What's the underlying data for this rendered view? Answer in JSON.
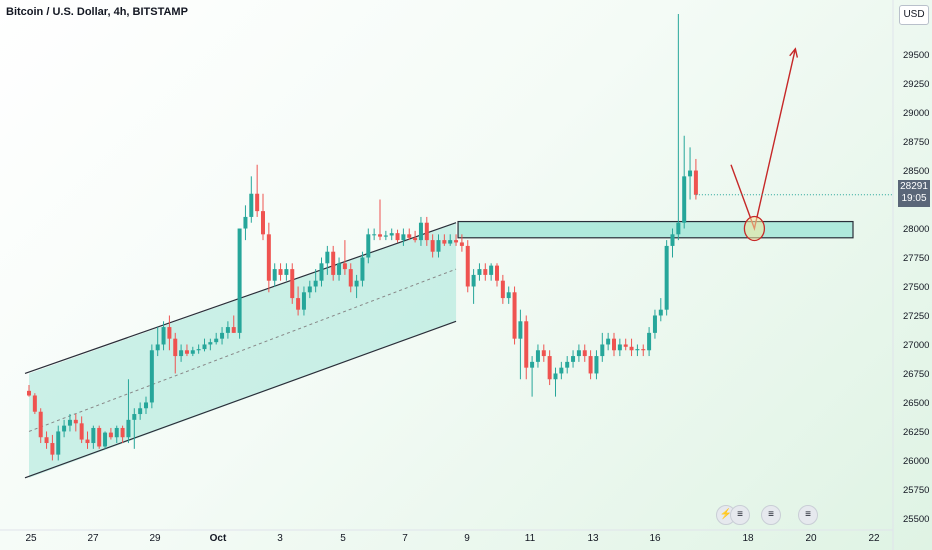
{
  "header": {
    "title": "Bitcoin / U.S. Dollar, 4h, BITSTAMP"
  },
  "currency": "USD",
  "last_price": {
    "value": "28291",
    "countdown": "19:05"
  },
  "events": [
    {
      "icon": "lightning-icon",
      "label": "⚡"
    },
    {
      "icon": "flag-icon",
      "label": "≡"
    },
    {
      "icon": "flag-icon",
      "label": "≡"
    },
    {
      "icon": "flag-icon",
      "label": "≡"
    }
  ],
  "colors": {
    "up": "#26a69a",
    "down": "#ef5350",
    "zone_fill": "#a5e6d8",
    "arrow": "#c62828"
  },
  "chart_data": {
    "type": "candlestick",
    "title": "Bitcoin / U.S. Dollar, 4h, BITSTAMP",
    "y_ticks": [
      29500,
      29250,
      29000,
      28750,
      28500,
      28250,
      28000,
      27750,
      27500,
      27250,
      27000,
      26750,
      26500,
      26250,
      26000,
      25750,
      25500
    ],
    "x_ticks": [
      "25",
      "27",
      "29",
      "Oct",
      "3",
      "5",
      "7",
      "9",
      "11",
      "13",
      "16",
      "18",
      "20",
      "22"
    ],
    "ylim": [
      25400,
      29850
    ],
    "candles": [
      {
        "o": 26600,
        "h": 26650,
        "l": 26550,
        "c": 26560
      },
      {
        "o": 26560,
        "h": 26580,
        "l": 26400,
        "c": 26420
      },
      {
        "o": 26420,
        "h": 26450,
        "l": 26150,
        "c": 26200
      },
      {
        "o": 26200,
        "h": 26250,
        "l": 26100,
        "c": 26150
      },
      {
        "o": 26150,
        "h": 26220,
        "l": 26000,
        "c": 26050
      },
      {
        "o": 26050,
        "h": 26300,
        "l": 26000,
        "c": 26250
      },
      {
        "o": 26250,
        "h": 26350,
        "l": 26200,
        "c": 26300
      },
      {
        "o": 26300,
        "h": 26400,
        "l": 26250,
        "c": 26350
      },
      {
        "o": 26350,
        "h": 26400,
        "l": 26250,
        "c": 26320
      },
      {
        "o": 26320,
        "h": 26380,
        "l": 26150,
        "c": 26180
      },
      {
        "o": 26180,
        "h": 26250,
        "l": 26100,
        "c": 26150
      },
      {
        "o": 26150,
        "h": 26300,
        "l": 26100,
        "c": 26280
      },
      {
        "o": 26280,
        "h": 26300,
        "l": 26100,
        "c": 26120
      },
      {
        "o": 26120,
        "h": 26250,
        "l": 26100,
        "c": 26240
      },
      {
        "o": 26240,
        "h": 26280,
        "l": 26180,
        "c": 26200
      },
      {
        "o": 26200,
        "h": 26300,
        "l": 26150,
        "c": 26280
      },
      {
        "o": 26280,
        "h": 26300,
        "l": 26150,
        "c": 26200
      },
      {
        "o": 26200,
        "h": 26700,
        "l": 26150,
        "c": 26350
      },
      {
        "o": 26350,
        "h": 26450,
        "l": 26100,
        "c": 26400
      },
      {
        "o": 26400,
        "h": 26500,
        "l": 26350,
        "c": 26450
      },
      {
        "o": 26450,
        "h": 26550,
        "l": 26400,
        "c": 26500
      },
      {
        "o": 26500,
        "h": 27000,
        "l": 26450,
        "c": 26950
      },
      {
        "o": 26950,
        "h": 27150,
        "l": 26900,
        "c": 27000
      },
      {
        "o": 27000,
        "h": 27200,
        "l": 26950,
        "c": 27150
      },
      {
        "o": 27150,
        "h": 27250,
        "l": 26950,
        "c": 27050
      },
      {
        "o": 27050,
        "h": 27100,
        "l": 26750,
        "c": 26900
      },
      {
        "o": 26900,
        "h": 27000,
        "l": 26850,
        "c": 26950
      },
      {
        "o": 26950,
        "h": 27000,
        "l": 26900,
        "c": 26920
      },
      {
        "o": 26920,
        "h": 26980,
        "l": 26900,
        "c": 26950
      },
      {
        "o": 26950,
        "h": 27000,
        "l": 26920,
        "c": 26960
      },
      {
        "o": 26960,
        "h": 27050,
        "l": 26940,
        "c": 27000
      },
      {
        "o": 27000,
        "h": 27050,
        "l": 26950,
        "c": 27020
      },
      {
        "o": 27020,
        "h": 27100,
        "l": 27000,
        "c": 27050
      },
      {
        "o": 27050,
        "h": 27150,
        "l": 27000,
        "c": 27100
      },
      {
        "o": 27100,
        "h": 27200,
        "l": 27050,
        "c": 27150
      },
      {
        "o": 27150,
        "h": 27250,
        "l": 27100,
        "c": 27100
      },
      {
        "o": 27100,
        "h": 28000,
        "l": 27050,
        "c": 28000
      },
      {
        "o": 28000,
        "h": 28200,
        "l": 27900,
        "c": 28100
      },
      {
        "o": 28100,
        "h": 28450,
        "l": 28050,
        "c": 28300
      },
      {
        "o": 28300,
        "h": 28550,
        "l": 28100,
        "c": 28150
      },
      {
        "o": 28150,
        "h": 28300,
        "l": 27900,
        "c": 27950
      },
      {
        "o": 27950,
        "h": 28050,
        "l": 27450,
        "c": 27550
      },
      {
        "o": 27550,
        "h": 27700,
        "l": 27500,
        "c": 27650
      },
      {
        "o": 27650,
        "h": 27700,
        "l": 27550,
        "c": 27600
      },
      {
        "o": 27600,
        "h": 27700,
        "l": 27550,
        "c": 27650
      },
      {
        "o": 27650,
        "h": 27700,
        "l": 27350,
        "c": 27400
      },
      {
        "o": 27400,
        "h": 27500,
        "l": 27250,
        "c": 27300
      },
      {
        "o": 27300,
        "h": 27500,
        "l": 27250,
        "c": 27450
      },
      {
        "o": 27450,
        "h": 27550,
        "l": 27400,
        "c": 27500
      },
      {
        "o": 27500,
        "h": 27650,
        "l": 27450,
        "c": 27550
      },
      {
        "o": 27550,
        "h": 27750,
        "l": 27500,
        "c": 27700
      },
      {
        "o": 27700,
        "h": 27850,
        "l": 27600,
        "c": 27800
      },
      {
        "o": 27800,
        "h": 27850,
        "l": 27550,
        "c": 27600
      },
      {
        "o": 27600,
        "h": 27750,
        "l": 27550,
        "c": 27700
      },
      {
        "o": 27700,
        "h": 27900,
        "l": 27600,
        "c": 27650
      },
      {
        "o": 27650,
        "h": 27700,
        "l": 27450,
        "c": 27500
      },
      {
        "o": 27500,
        "h": 27600,
        "l": 27400,
        "c": 27550
      },
      {
        "o": 27550,
        "h": 27800,
        "l": 27500,
        "c": 27750
      },
      {
        "o": 27750,
        "h": 28000,
        "l": 27700,
        "c": 27950
      },
      {
        "o": 27950,
        "h": 28000,
        "l": 27900,
        "c": 27950
      },
      {
        "o": 27950,
        "h": 28250,
        "l": 27900,
        "c": 27930
      },
      {
        "o": 27930,
        "h": 27980,
        "l": 27900,
        "c": 27940
      },
      {
        "o": 27940,
        "h": 28000,
        "l": 27900,
        "c": 27960
      },
      {
        "o": 27960,
        "h": 27990,
        "l": 27880,
        "c": 27900
      },
      {
        "o": 27900,
        "h": 28000,
        "l": 27850,
        "c": 27950
      },
      {
        "o": 27950,
        "h": 28000,
        "l": 27900,
        "c": 27920
      },
      {
        "o": 27920,
        "h": 27980,
        "l": 27880,
        "c": 27900
      },
      {
        "o": 27900,
        "h": 28100,
        "l": 27850,
        "c": 28050
      },
      {
        "o": 28050,
        "h": 28100,
        "l": 27850,
        "c": 27900
      },
      {
        "o": 27900,
        "h": 27950,
        "l": 27750,
        "c": 27800
      },
      {
        "o": 27800,
        "h": 27950,
        "l": 27750,
        "c": 27900
      },
      {
        "o": 27900,
        "h": 27950,
        "l": 27850,
        "c": 27870
      },
      {
        "o": 27870,
        "h": 27950,
        "l": 27850,
        "c": 27900
      },
      {
        "o": 27900,
        "h": 27950,
        "l": 27850,
        "c": 27880
      },
      {
        "o": 27880,
        "h": 27950,
        "l": 27800,
        "c": 27850
      },
      {
        "o": 27850,
        "h": 27900,
        "l": 27450,
        "c": 27500
      },
      {
        "o": 27500,
        "h": 27650,
        "l": 27350,
        "c": 27600
      },
      {
        "o": 27600,
        "h": 27700,
        "l": 27550,
        "c": 27650
      },
      {
        "o": 27650,
        "h": 27700,
        "l": 27550,
        "c": 27600
      },
      {
        "o": 27600,
        "h": 27700,
        "l": 27550,
        "c": 27680
      },
      {
        "o": 27680,
        "h": 27700,
        "l": 27500,
        "c": 27550
      },
      {
        "o": 27550,
        "h": 27600,
        "l": 27350,
        "c": 27400
      },
      {
        "o": 27400,
        "h": 27500,
        "l": 27350,
        "c": 27450
      },
      {
        "o": 27450,
        "h": 27500,
        "l": 27000,
        "c": 27050
      },
      {
        "o": 27050,
        "h": 27300,
        "l": 26700,
        "c": 27200
      },
      {
        "o": 27200,
        "h": 27250,
        "l": 26700,
        "c": 26800
      },
      {
        "o": 26800,
        "h": 26900,
        "l": 26550,
        "c": 26850
      },
      {
        "o": 26850,
        "h": 27000,
        "l": 26800,
        "c": 26950
      },
      {
        "o": 26950,
        "h": 27000,
        "l": 26850,
        "c": 26900
      },
      {
        "o": 26900,
        "h": 26950,
        "l": 26650,
        "c": 26700
      },
      {
        "o": 26700,
        "h": 26800,
        "l": 26550,
        "c": 26750
      },
      {
        "o": 26750,
        "h": 26850,
        "l": 26700,
        "c": 26800
      },
      {
        "o": 26800,
        "h": 26900,
        "l": 26750,
        "c": 26850
      },
      {
        "o": 26850,
        "h": 26950,
        "l": 26800,
        "c": 26900
      },
      {
        "o": 26900,
        "h": 27000,
        "l": 26850,
        "c": 26950
      },
      {
        "o": 26950,
        "h": 27000,
        "l": 26850,
        "c": 26900
      },
      {
        "o": 26900,
        "h": 26950,
        "l": 26700,
        "c": 26750
      },
      {
        "o": 26750,
        "h": 26950,
        "l": 26700,
        "c": 26900
      },
      {
        "o": 26900,
        "h": 27100,
        "l": 26850,
        "c": 27000
      },
      {
        "o": 27000,
        "h": 27100,
        "l": 26950,
        "c": 27050
      },
      {
        "o": 27050,
        "h": 27100,
        "l": 26900,
        "c": 26950
      },
      {
        "o": 26950,
        "h": 27050,
        "l": 26900,
        "c": 27000
      },
      {
        "o": 27000,
        "h": 27050,
        "l": 26950,
        "c": 26980
      },
      {
        "o": 26980,
        "h": 27050,
        "l": 26900,
        "c": 26950
      },
      {
        "o": 26950,
        "h": 27000,
        "l": 26900,
        "c": 26960
      },
      {
        "o": 26960,
        "h": 27000,
        "l": 26900,
        "c": 26950
      },
      {
        "o": 26950,
        "h": 27150,
        "l": 26900,
        "c": 27100
      },
      {
        "o": 27100,
        "h": 27300,
        "l": 27050,
        "c": 27250
      },
      {
        "o": 27250,
        "h": 27400,
        "l": 27200,
        "c": 27300
      },
      {
        "o": 27300,
        "h": 27900,
        "l": 27250,
        "c": 27850
      },
      {
        "o": 27850,
        "h": 28000,
        "l": 27750,
        "c": 27950
      },
      {
        "o": 27950,
        "h": 29850,
        "l": 27900,
        "c": 28050
      },
      {
        "o": 28050,
        "h": 28800,
        "l": 28000,
        "c": 28450
      },
      {
        "o": 28450,
        "h": 28700,
        "l": 28250,
        "c": 28500
      },
      {
        "o": 28500,
        "h": 28600,
        "l": 28250,
        "c": 28291
      }
    ],
    "channel": {
      "upper": [
        [
          26750,
          0
        ],
        [
          28050,
          73
        ]
      ],
      "lower": [
        [
          25850,
          0
        ],
        [
          27200,
          73
        ]
      ],
      "mid": [
        [
          26250,
          0
        ],
        [
          27650,
          73
        ]
      ]
    },
    "resistance_zone": {
      "top": 28060,
      "bottom": 27920,
      "from_index": 73
    },
    "projection": {
      "path": [
        [
          28550,
          120
        ],
        [
          28000,
          124
        ],
        [
          29550,
          131
        ]
      ],
      "circle_at": [
        28000,
        124
      ]
    }
  }
}
